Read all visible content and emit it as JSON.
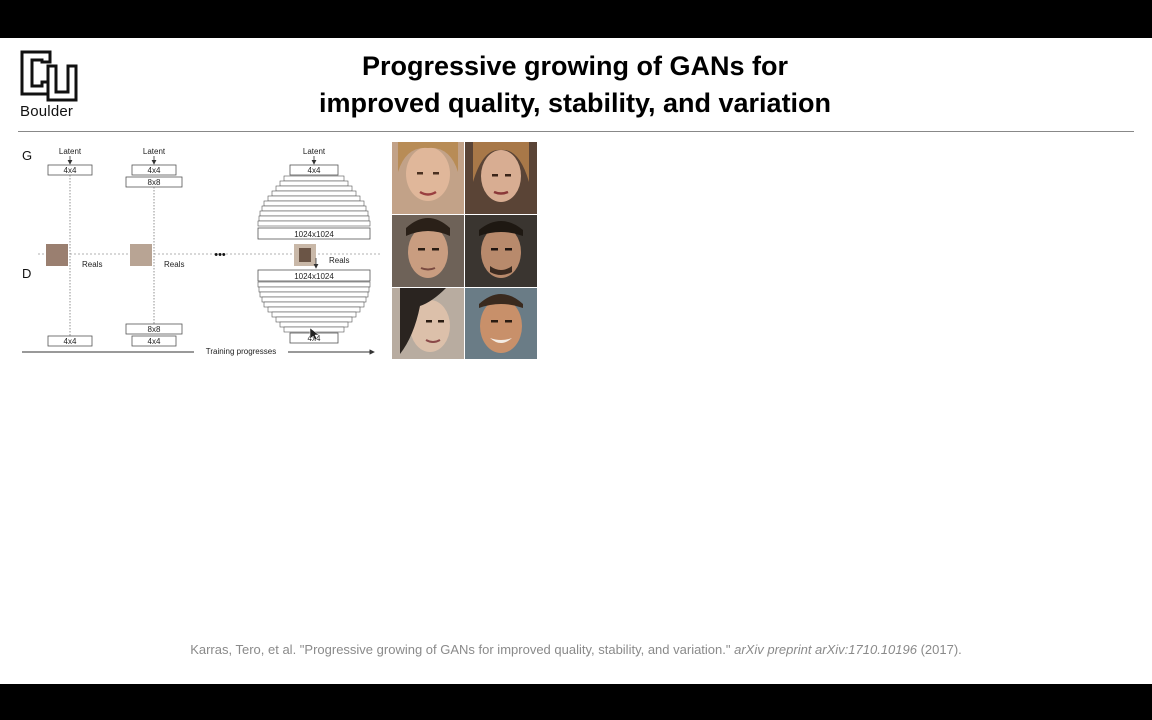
{
  "slide": {
    "logo_text": "Boulder",
    "title_line1": "Progressive growing of GANs for",
    "title_line2": "improved quality, stability, and variation"
  },
  "figure": {
    "label_g": "G",
    "label_d": "D",
    "latent": "Latent",
    "reals": "Reals",
    "block_4x4": "4x4",
    "block_8x8": "8x8",
    "block_1024": "1024x1024",
    "ellipsis": "•••",
    "training_progresses": "Training progresses"
  },
  "citation": {
    "authors": "Karras, Tero, et al. \"Progressive growing of GANs for improved quality, stability, and variation.\"",
    "venue": "arXiv preprint arXiv:1710.10196",
    "year": "(2017)."
  },
  "colors": {
    "background": "#ffffff",
    "letterbox": "#000000",
    "citation_text": "#8a8a8a"
  }
}
